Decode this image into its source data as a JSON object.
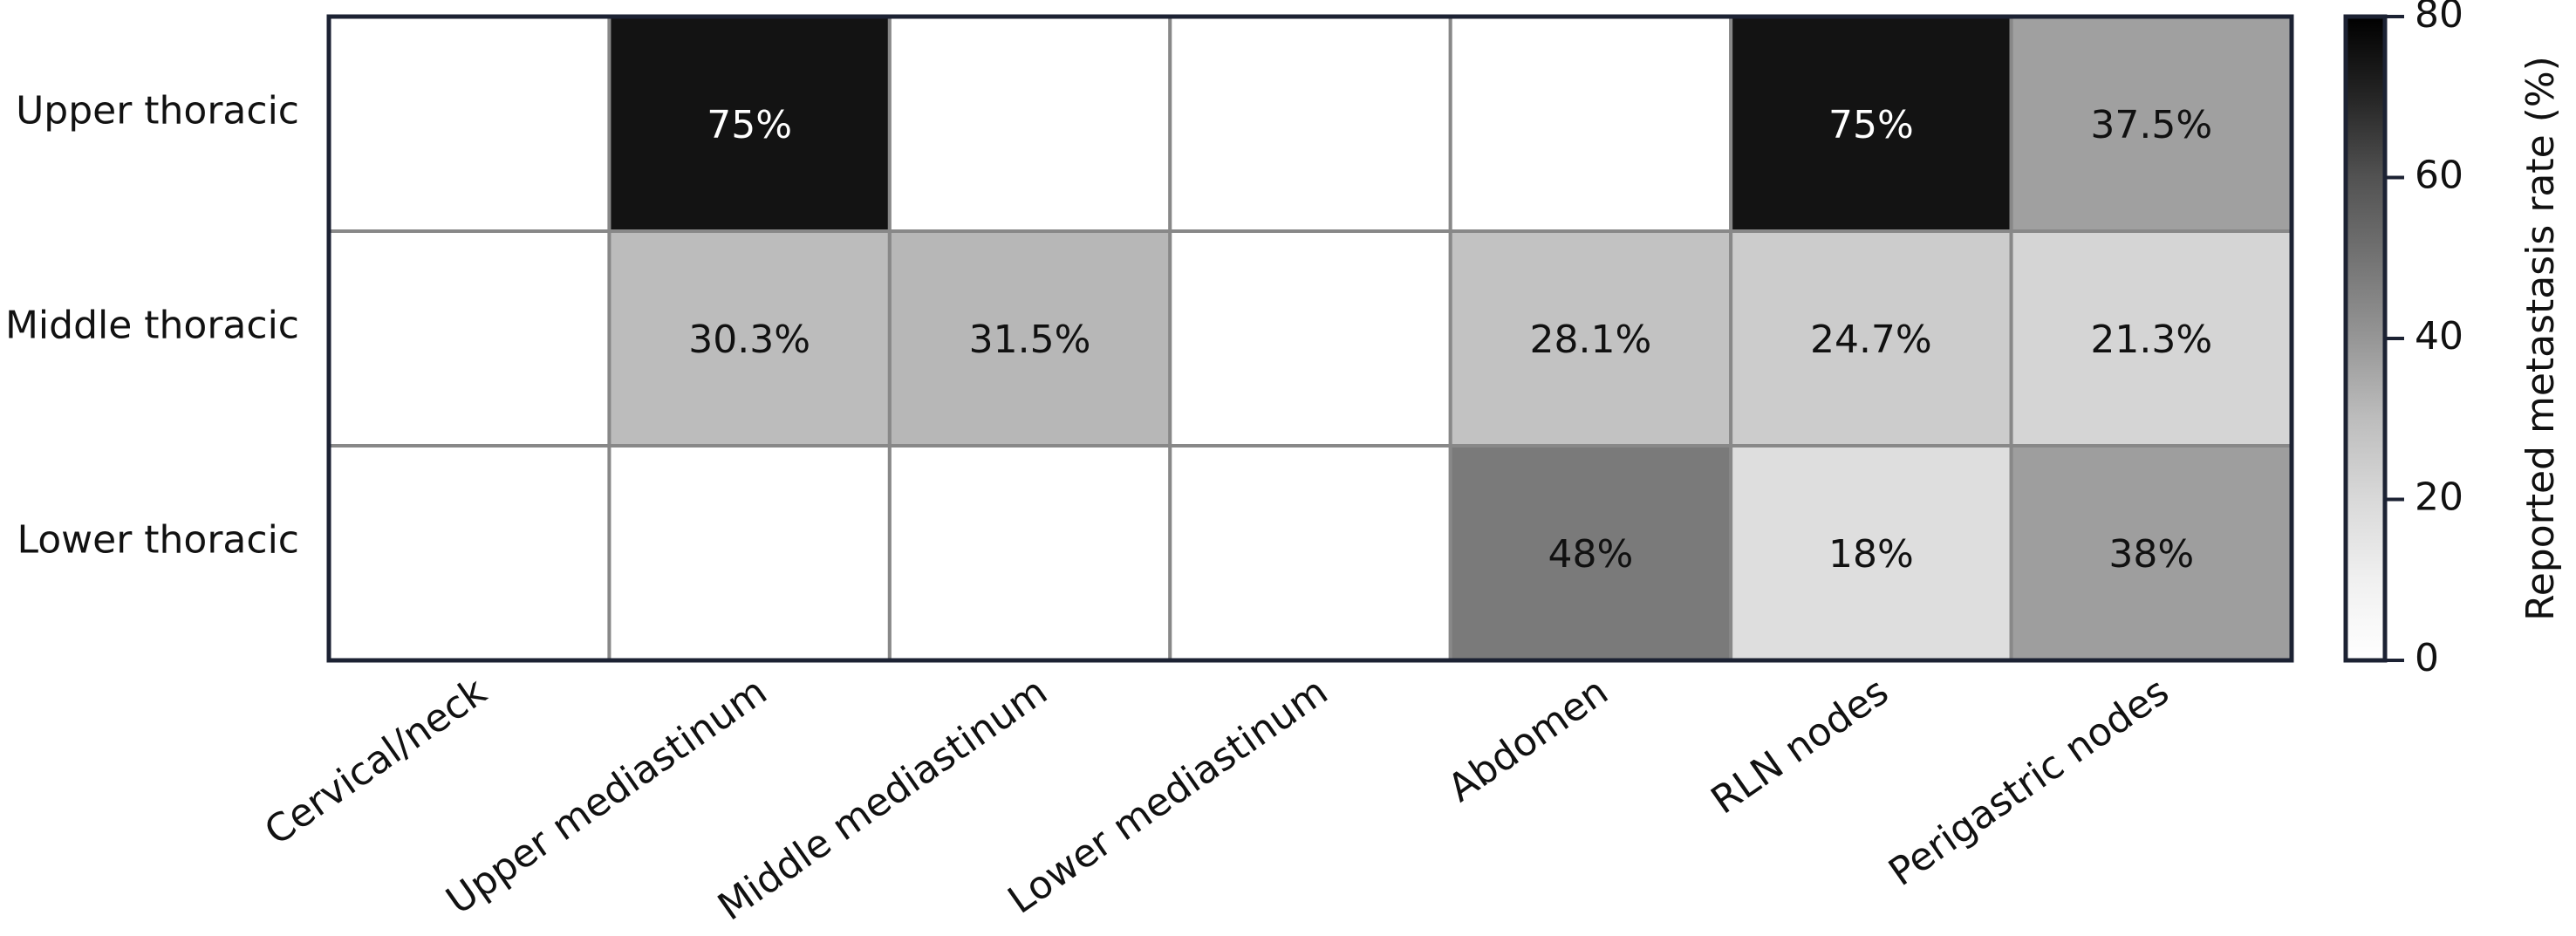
{
  "chart_data": {
    "type": "heatmap",
    "x_categories": [
      "Cervical/neck",
      "Upper mediastinum",
      "Middle mediastinum",
      "Lower mediastinum",
      "Abdomen",
      "RLN nodes",
      "Perigastric nodes"
    ],
    "y_categories": [
      "Upper thoracic",
      "Middle thoracic",
      "Lower thoracic"
    ],
    "values": [
      [
        null,
        75,
        null,
        null,
        null,
        75,
        37.5
      ],
      [
        null,
        30.3,
        31.5,
        null,
        28.1,
        24.7,
        21.3
      ],
      [
        null,
        null,
        null,
        null,
        48,
        18,
        38
      ]
    ],
    "value_labels": [
      [
        null,
        "75%",
        null,
        null,
        null,
        "75%",
        "37.5%"
      ],
      [
        null,
        "30.3%",
        "31.5%",
        null,
        "28.1%",
        "24.7%",
        "21.3%"
      ],
      [
        null,
        null,
        null,
        null,
        "48%",
        "18%",
        "38%"
      ]
    ],
    "cmap": [
      "#ffffff",
      "#f0f0f0",
      "#d9d9d9",
      "#bdbdbd",
      "#969696",
      "#737373",
      "#525252",
      "#252525",
      "#000000"
    ],
    "clim": [
      0,
      80
    ],
    "cticks": [
      0,
      20,
      40,
      60,
      80
    ],
    "colorbar_label": "Reported metastasis rate (%)"
  }
}
